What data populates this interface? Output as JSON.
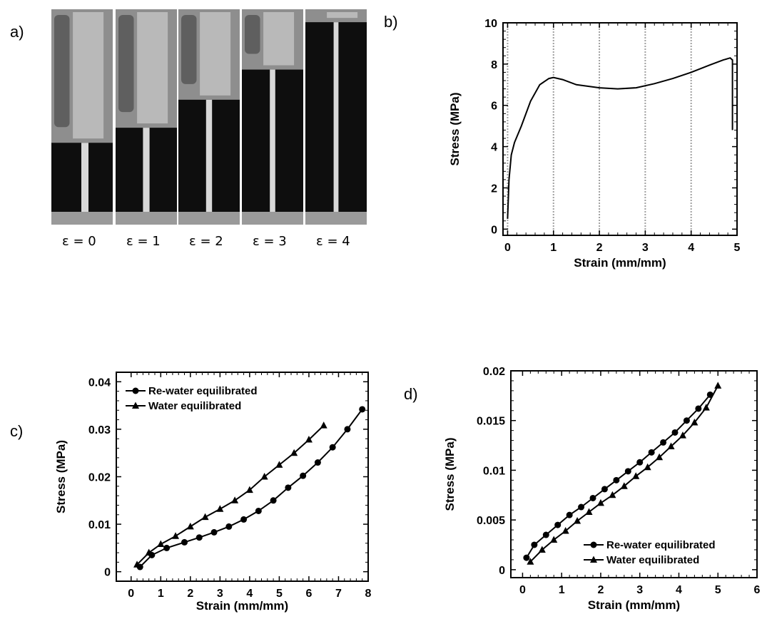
{
  "panel_labels": {
    "a": "a)",
    "b": "b)",
    "c": "c)",
    "d": "d)"
  },
  "photos": {
    "captions": [
      "ε = 0",
      "ε = 1",
      "ε = 2",
      "ε = 3",
      "ε = 4"
    ],
    "background_color": "#0e0e0e",
    "specimen_color": "#d8d8d8"
  },
  "chart_data": [
    {
      "id": "b",
      "type": "line",
      "xlabel": "Strain (mm/mm)",
      "ylabel": "Stress (MPa)",
      "xlim": [
        -0.1,
        5
      ],
      "ylim": [
        -0.3,
        10
      ],
      "xticks": [
        0,
        1,
        2,
        3,
        4,
        5
      ],
      "yticks": [
        0,
        2,
        4,
        6,
        8,
        10
      ],
      "vertical_reference_lines": [
        0,
        1,
        2,
        3,
        4
      ],
      "series": [
        {
          "x": [
            0,
            0.03,
            0.08,
            0.15,
            0.3,
            0.5,
            0.7,
            0.9,
            1.0,
            1.2,
            1.5,
            2.0,
            2.4,
            2.8,
            3.2,
            3.6,
            4.0,
            4.4,
            4.7,
            4.85,
            4.9,
            4.9
          ],
          "y": [
            0.5,
            2.4,
            3.6,
            4.2,
            5.0,
            6.2,
            7.0,
            7.3,
            7.35,
            7.25,
            7.0,
            6.85,
            6.8,
            6.85,
            7.05,
            7.3,
            7.6,
            7.95,
            8.2,
            8.3,
            8.2,
            4.8
          ]
        }
      ]
    },
    {
      "id": "c",
      "type": "line",
      "xlabel": "Strain (mm/mm)",
      "ylabel": "Stress (MPa)",
      "xlim": [
        -0.5,
        8
      ],
      "ylim": [
        -0.002,
        0.042
      ],
      "xticks": [
        0,
        1,
        2,
        3,
        4,
        5,
        6,
        7,
        8
      ],
      "yticks": [
        0,
        0.01,
        0.02,
        0.03,
        0.04
      ],
      "yticklabels": [
        "0",
        "0.01",
        "0.02",
        "0.03",
        "0.04"
      ],
      "legend": "top-left",
      "series": [
        {
          "name": "Re-water equilibrated",
          "marker": "circle",
          "x": [
            0.3,
            0.7,
            1.2,
            1.8,
            2.3,
            2.8,
            3.3,
            3.8,
            4.3,
            4.8,
            5.3,
            5.8,
            6.3,
            6.8,
            7.3,
            7.8
          ],
          "y": [
            0.001,
            0.0035,
            0.005,
            0.0062,
            0.0072,
            0.0083,
            0.0095,
            0.011,
            0.0128,
            0.015,
            0.0177,
            0.0202,
            0.023,
            0.0262,
            0.03,
            0.0342
          ]
        },
        {
          "name": "Water equilibrated",
          "marker": "triangle",
          "x": [
            0.2,
            0.6,
            1.0,
            1.5,
            2.0,
            2.5,
            3.0,
            3.5,
            4.0,
            4.5,
            5.0,
            5.5,
            6.0,
            6.5
          ],
          "y": [
            0.0015,
            0.004,
            0.0058,
            0.0075,
            0.0095,
            0.0115,
            0.0132,
            0.015,
            0.0172,
            0.02,
            0.0225,
            0.025,
            0.0278,
            0.0308
          ]
        }
      ]
    },
    {
      "id": "d",
      "type": "line",
      "xlabel": "Strain (mm/mm)",
      "ylabel": "Stress (MPa)",
      "xlim": [
        -0.3,
        6
      ],
      "ylim": [
        -0.0008,
        0.02
      ],
      "xticks": [
        0,
        1,
        2,
        3,
        4,
        5,
        6
      ],
      "yticks": [
        0,
        0.005,
        0.01,
        0.015,
        0.02
      ],
      "yticklabels": [
        "0",
        "0.005",
        "0.01",
        "0.015",
        "0.02"
      ],
      "legend": "bottom-right",
      "series": [
        {
          "name": "Re-water equilibrated",
          "marker": "circle",
          "x": [
            0.1,
            0.3,
            0.6,
            0.9,
            1.2,
            1.5,
            1.8,
            2.1,
            2.4,
            2.7,
            3.0,
            3.3,
            3.6,
            3.9,
            4.2,
            4.5,
            4.8
          ],
          "y": [
            0.0012,
            0.0025,
            0.0035,
            0.0045,
            0.0055,
            0.0063,
            0.0072,
            0.0081,
            0.009,
            0.0099,
            0.0108,
            0.0118,
            0.0128,
            0.0138,
            0.015,
            0.0162,
            0.0176
          ]
        },
        {
          "name": "Water equilibrated",
          "marker": "triangle",
          "x": [
            0.2,
            0.5,
            0.8,
            1.1,
            1.4,
            1.7,
            2.0,
            2.3,
            2.6,
            2.9,
            3.2,
            3.5,
            3.8,
            4.1,
            4.4,
            4.7,
            5.0
          ],
          "y": [
            0.0008,
            0.002,
            0.003,
            0.0039,
            0.0049,
            0.0058,
            0.0067,
            0.0075,
            0.0084,
            0.0094,
            0.0103,
            0.0113,
            0.0124,
            0.0135,
            0.0148,
            0.0163,
            0.0185
          ]
        }
      ]
    }
  ]
}
